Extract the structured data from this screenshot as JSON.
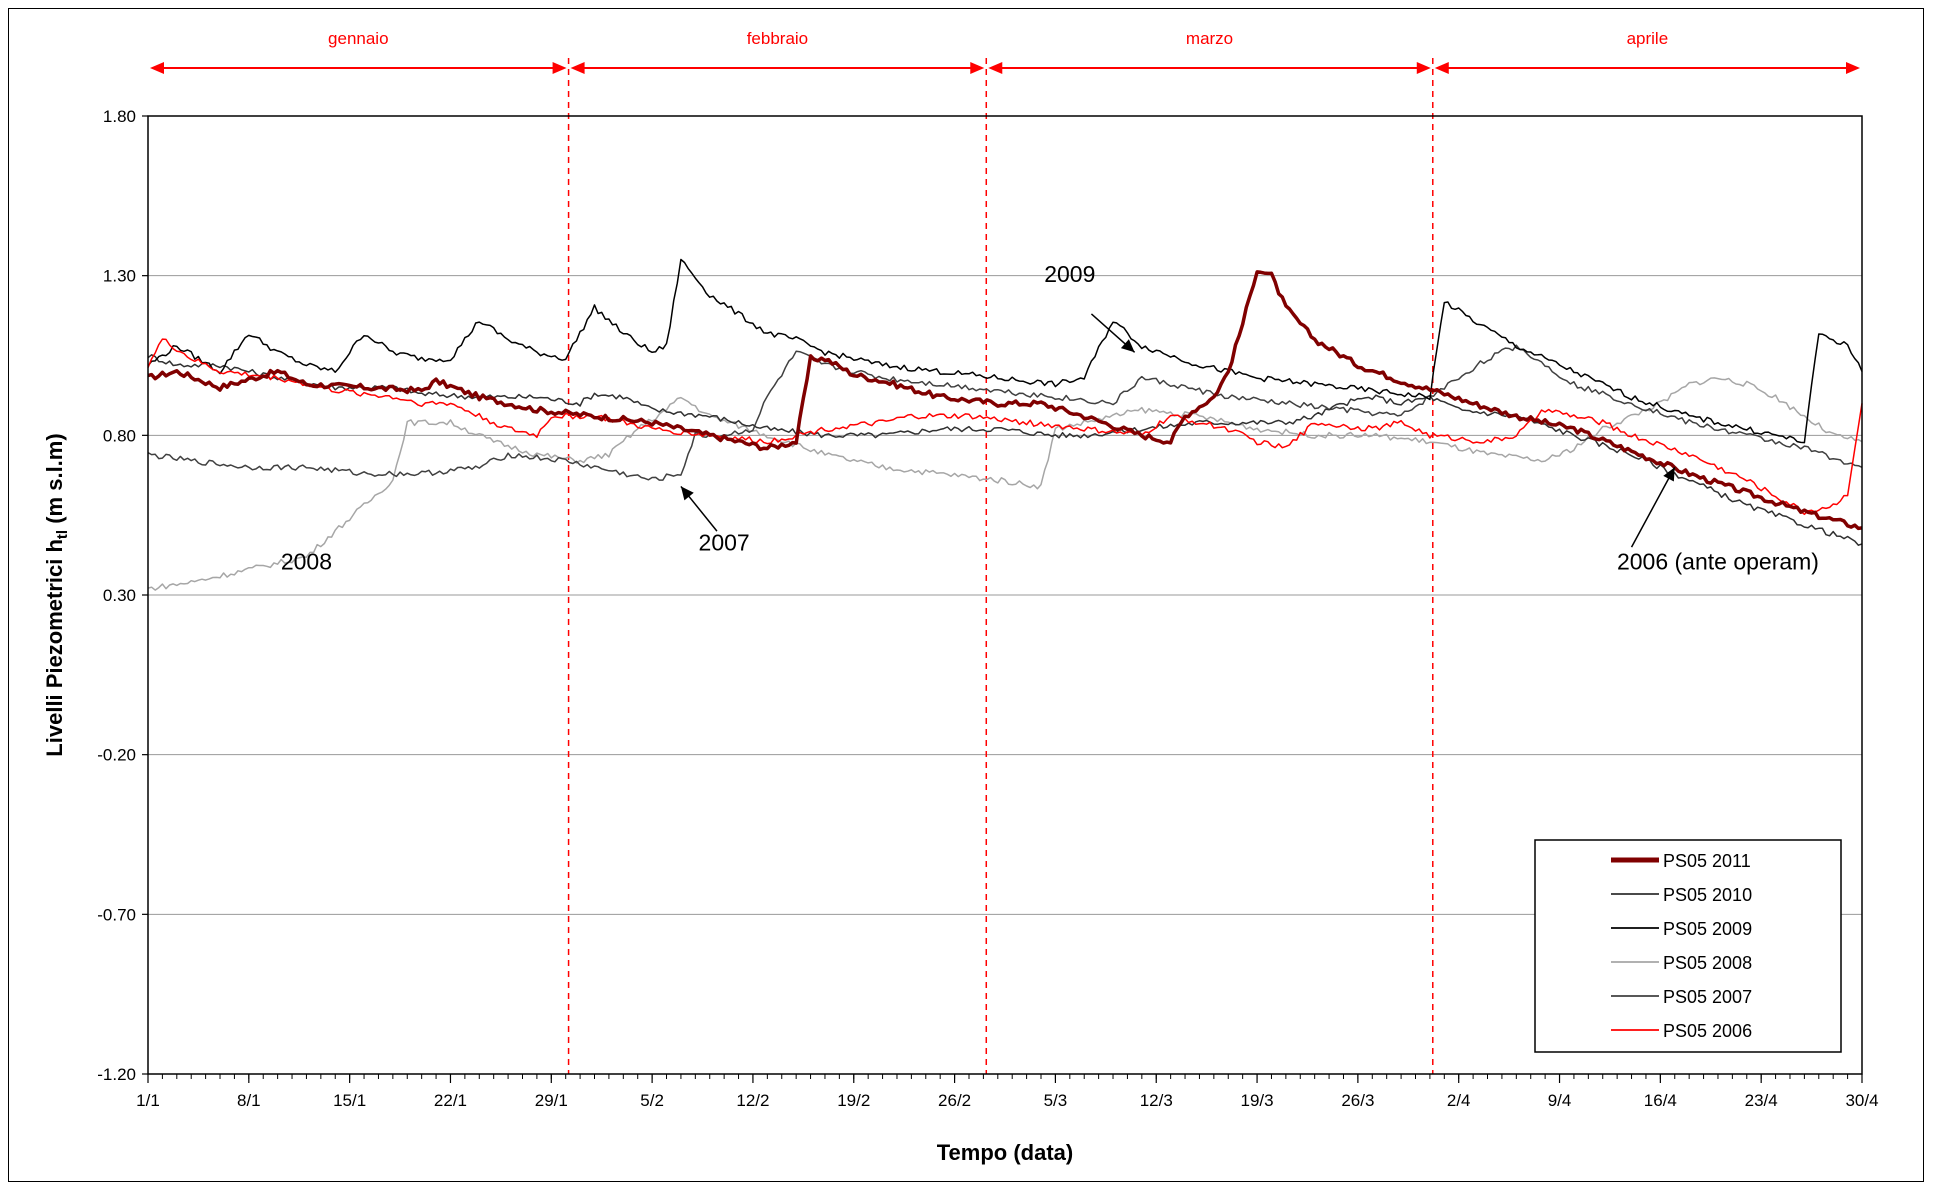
{
  "chart_data": {
    "type": "line",
    "title": "",
    "xlabel": "Tempo (data)",
    "ylabel": "Livelli Piezometrici h",
    "ylabel_sub": "tl",
    "ylabel_unit": " (m s.l.m)",
    "ylim": [
      -1.2,
      1.8
    ],
    "yticks": [
      1.8,
      1.3,
      0.8,
      0.3,
      -0.2,
      -0.7,
      -1.2
    ],
    "ytick_labels": [
      "1.80",
      "1.30",
      "0.80",
      "0.30",
      "-0.20",
      "-0.70",
      "-1.20"
    ],
    "xlim": [
      1,
      120
    ],
    "xticks": [
      {
        "day": 1,
        "label": "1/1"
      },
      {
        "day": 8,
        "label": "8/1"
      },
      {
        "day": 15,
        "label": "15/1"
      },
      {
        "day": 22,
        "label": "22/1"
      },
      {
        "day": 29,
        "label": "29/1"
      },
      {
        "day": 36,
        "label": "5/2"
      },
      {
        "day": 43,
        "label": "12/2"
      },
      {
        "day": 50,
        "label": "19/2"
      },
      {
        "day": 57,
        "label": "26/2"
      },
      {
        "day": 64,
        "label": "5/3"
      },
      {
        "day": 71,
        "label": "12/3"
      },
      {
        "day": 78,
        "label": "19/3"
      },
      {
        "day": 85,
        "label": "26/3"
      },
      {
        "day": 92,
        "label": "2/4"
      },
      {
        "day": 99,
        "label": "9/4"
      },
      {
        "day": 106,
        "label": "16/4"
      },
      {
        "day": 113,
        "label": "23/4"
      },
      {
        "day": 120,
        "label": "30/4"
      }
    ],
    "months": [
      {
        "name": "gennaio",
        "start": 1,
        "end": 30.2
      },
      {
        "name": "febbraio",
        "start": 30.2,
        "end": 59.2
      },
      {
        "name": "marzo",
        "start": 59.2,
        "end": 90.2
      },
      {
        "name": "aprile",
        "start": 90.2,
        "end": 120
      }
    ],
    "month_boundaries": [
      30.2,
      59.2,
      90.2
    ],
    "grid": true,
    "legend_position": "bottom-right",
    "series": [
      {
        "name": "PS05 2011",
        "color": "#800000",
        "width": 3.5,
        "points": [
          [
            1,
            0.98
          ],
          [
            3,
            1.0
          ],
          [
            6,
            0.95
          ],
          [
            10,
            1.0
          ],
          [
            12,
            0.96
          ],
          [
            16,
            0.95
          ],
          [
            20,
            0.94
          ],
          [
            21,
            0.97
          ],
          [
            24,
            0.92
          ],
          [
            28,
            0.88
          ],
          [
            32,
            0.86
          ],
          [
            36,
            0.84
          ],
          [
            40,
            0.8
          ],
          [
            44,
            0.76
          ],
          [
            46,
            0.78
          ],
          [
            47,
            1.04
          ],
          [
            48,
            1.04
          ],
          [
            50,
            0.99
          ],
          [
            52,
            0.97
          ],
          [
            56,
            0.92
          ],
          [
            60,
            0.9
          ],
          [
            63,
            0.9
          ],
          [
            66,
            0.86
          ],
          [
            70,
            0.8
          ],
          [
            72,
            0.78
          ],
          [
            73,
            0.86
          ],
          [
            75,
            0.92
          ],
          [
            76,
            1.0
          ],
          [
            77,
            1.15
          ],
          [
            78,
            1.32
          ],
          [
            79,
            1.3
          ],
          [
            80,
            1.2
          ],
          [
            82,
            1.1
          ],
          [
            85,
            1.02
          ],
          [
            88,
            0.97
          ],
          [
            91,
            0.93
          ],
          [
            93,
            0.9
          ],
          [
            96,
            0.86
          ],
          [
            100,
            0.82
          ],
          [
            104,
            0.75
          ],
          [
            108,
            0.68
          ],
          [
            112,
            0.62
          ],
          [
            116,
            0.56
          ],
          [
            120,
            0.51
          ]
        ]
      },
      {
        "name": "PS05 2010",
        "color": "#303030",
        "width": 1.5,
        "points": [
          [
            1,
            1.05
          ],
          [
            3,
            1.02
          ],
          [
            6,
            1.02
          ],
          [
            10,
            0.98
          ],
          [
            14,
            0.95
          ],
          [
            18,
            0.95
          ],
          [
            20,
            0.93
          ],
          [
            24,
            0.92
          ],
          [
            28,
            0.92
          ],
          [
            31,
            0.9
          ],
          [
            32,
            0.93
          ],
          [
            34,
            0.92
          ],
          [
            36,
            0.88
          ],
          [
            40,
            0.86
          ],
          [
            44,
            0.82
          ],
          [
            48,
            0.8
          ],
          [
            52,
            0.8
          ],
          [
            56,
            0.82
          ],
          [
            60,
            0.82
          ],
          [
            64,
            0.8
          ],
          [
            66,
            0.8
          ],
          [
            70,
            0.82
          ],
          [
            74,
            0.84
          ],
          [
            78,
            0.84
          ],
          [
            80,
            0.84
          ],
          [
            82,
            0.86
          ],
          [
            84,
            0.9
          ],
          [
            86,
            0.92
          ],
          [
            88,
            0.9
          ],
          [
            90,
            0.92
          ],
          [
            92,
            0.88
          ],
          [
            96,
            0.86
          ],
          [
            100,
            0.8
          ],
          [
            104,
            0.74
          ],
          [
            108,
            0.66
          ],
          [
            112,
            0.58
          ],
          [
            116,
            0.52
          ],
          [
            120,
            0.46
          ]
        ]
      },
      {
        "name": "PS05 2009",
        "color": "#000000",
        "width": 1.5,
        "points": [
          [
            1,
            1.02
          ],
          [
            3,
            1.08
          ],
          [
            6,
            1.0
          ],
          [
            8,
            1.12
          ],
          [
            10,
            1.06
          ],
          [
            12,
            1.02
          ],
          [
            14,
            1.0
          ],
          [
            16,
            1.12
          ],
          [
            18,
            1.06
          ],
          [
            20,
            1.04
          ],
          [
            22,
            1.04
          ],
          [
            24,
            1.16
          ],
          [
            26,
            1.1
          ],
          [
            28,
            1.06
          ],
          [
            30,
            1.04
          ],
          [
            32,
            1.2
          ],
          [
            34,
            1.12
          ],
          [
            36,
            1.06
          ],
          [
            37,
            1.08
          ],
          [
            38,
            1.35
          ],
          [
            40,
            1.24
          ],
          [
            42,
            1.18
          ],
          [
            44,
            1.12
          ],
          [
            46,
            1.1
          ],
          [
            48,
            1.06
          ],
          [
            52,
            1.02
          ],
          [
            56,
            1.0
          ],
          [
            60,
            0.98
          ],
          [
            64,
            0.96
          ],
          [
            66,
            0.98
          ],
          [
            68,
            1.16
          ],
          [
            70,
            1.08
          ],
          [
            74,
            1.02
          ],
          [
            78,
            0.98
          ],
          [
            82,
            0.96
          ],
          [
            86,
            0.94
          ],
          [
            90,
            0.92
          ],
          [
            91,
            1.22
          ],
          [
            93,
            1.16
          ],
          [
            96,
            1.08
          ],
          [
            100,
            1.0
          ],
          [
            104,
            0.92
          ],
          [
            108,
            0.86
          ],
          [
            112,
            0.82
          ],
          [
            116,
            0.78
          ],
          [
            117,
            1.12
          ],
          [
            119,
            1.08
          ],
          [
            120,
            1.0
          ]
        ]
      },
      {
        "name": "PS05 2008",
        "color": "#a6a6a6",
        "width": 1.5,
        "points": [
          [
            1,
            0.32
          ],
          [
            4,
            0.34
          ],
          [
            8,
            0.38
          ],
          [
            12,
            0.42
          ],
          [
            15,
            0.54
          ],
          [
            18,
            0.66
          ],
          [
            19,
            0.84
          ],
          [
            22,
            0.84
          ],
          [
            25,
            0.78
          ],
          [
            28,
            0.74
          ],
          [
            31,
            0.72
          ],
          [
            33,
            0.74
          ],
          [
            35,
            0.82
          ],
          [
            37,
            0.88
          ],
          [
            38,
            0.92
          ],
          [
            40,
            0.86
          ],
          [
            44,
            0.8
          ],
          [
            48,
            0.74
          ],
          [
            52,
            0.7
          ],
          [
            56,
            0.68
          ],
          [
            60,
            0.66
          ],
          [
            63,
            0.64
          ],
          [
            64,
            0.82
          ],
          [
            66,
            0.84
          ],
          [
            70,
            0.88
          ],
          [
            74,
            0.86
          ],
          [
            78,
            0.82
          ],
          [
            82,
            0.8
          ],
          [
            86,
            0.8
          ],
          [
            90,
            0.78
          ],
          [
            94,
            0.74
          ],
          [
            98,
            0.72
          ],
          [
            100,
            0.76
          ],
          [
            102,
            0.82
          ],
          [
            104,
            0.86
          ],
          [
            106,
            0.9
          ],
          [
            108,
            0.96
          ],
          [
            110,
            0.98
          ],
          [
            112,
            0.96
          ],
          [
            114,
            0.92
          ],
          [
            116,
            0.86
          ],
          [
            118,
            0.8
          ],
          [
            120,
            0.78
          ]
        ]
      },
      {
        "name": "PS05 2007",
        "color": "#404040",
        "width": 1.5,
        "points": [
          [
            1,
            0.74
          ],
          [
            4,
            0.72
          ],
          [
            8,
            0.7
          ],
          [
            12,
            0.7
          ],
          [
            16,
            0.68
          ],
          [
            20,
            0.68
          ],
          [
            24,
            0.7
          ],
          [
            26,
            0.74
          ],
          [
            30,
            0.72
          ],
          [
            34,
            0.68
          ],
          [
            36,
            0.66
          ],
          [
            38,
            0.68
          ],
          [
            39,
            0.8
          ],
          [
            41,
            0.8
          ],
          [
            43,
            0.82
          ],
          [
            44,
            0.92
          ],
          [
            46,
            1.06
          ],
          [
            48,
            1.02
          ],
          [
            50,
            1.0
          ],
          [
            52,
            0.98
          ],
          [
            56,
            0.96
          ],
          [
            60,
            0.94
          ],
          [
            64,
            0.92
          ],
          [
            68,
            0.9
          ],
          [
            70,
            0.98
          ],
          [
            72,
            0.96
          ],
          [
            76,
            0.92
          ],
          [
            80,
            0.9
          ],
          [
            84,
            0.88
          ],
          [
            88,
            0.86
          ],
          [
            92,
            0.98
          ],
          [
            94,
            1.04
          ],
          [
            96,
            1.08
          ],
          [
            98,
            1.02
          ],
          [
            100,
            0.96
          ],
          [
            104,
            0.9
          ],
          [
            108,
            0.84
          ],
          [
            112,
            0.8
          ],
          [
            116,
            0.76
          ],
          [
            120,
            0.7
          ]
        ]
      },
      {
        "name": "PS05 2006",
        "color": "#ff0000",
        "width": 1.5,
        "points": [
          [
            1,
            1.02
          ],
          [
            2,
            1.1
          ],
          [
            4,
            1.04
          ],
          [
            6,
            1.0
          ],
          [
            10,
            0.98
          ],
          [
            14,
            0.94
          ],
          [
            18,
            0.92
          ],
          [
            20,
            0.9
          ],
          [
            22,
            0.9
          ],
          [
            26,
            0.82
          ],
          [
            28,
            0.8
          ],
          [
            29,
            0.86
          ],
          [
            32,
            0.86
          ],
          [
            36,
            0.82
          ],
          [
            40,
            0.8
          ],
          [
            44,
            0.78
          ],
          [
            46,
            0.8
          ],
          [
            48,
            0.82
          ],
          [
            52,
            0.84
          ],
          [
            54,
            0.86
          ],
          [
            58,
            0.86
          ],
          [
            62,
            0.84
          ],
          [
            66,
            0.82
          ],
          [
            70,
            0.8
          ],
          [
            72,
            0.86
          ],
          [
            76,
            0.82
          ],
          [
            78,
            0.78
          ],
          [
            80,
            0.76
          ],
          [
            82,
            0.84
          ],
          [
            86,
            0.82
          ],
          [
            88,
            0.84
          ],
          [
            90,
            0.8
          ],
          [
            94,
            0.78
          ],
          [
            96,
            0.8
          ],
          [
            98,
            0.88
          ],
          [
            100,
            0.86
          ],
          [
            102,
            0.84
          ],
          [
            104,
            0.8
          ],
          [
            108,
            0.74
          ],
          [
            112,
            0.66
          ],
          [
            116,
            0.56
          ],
          [
            118,
            0.58
          ],
          [
            119,
            0.62
          ],
          [
            120,
            0.9
          ]
        ]
      }
    ],
    "annotations": [
      {
        "text": "2009",
        "x": 65,
        "y": 1.28
      },
      {
        "text": "2008",
        "x": 12,
        "y": 0.38
      },
      {
        "text": "2007",
        "x": 41,
        "y": 0.44
      },
      {
        "text": "2006 (ante operam)",
        "x": 110,
        "y": 0.38
      }
    ]
  }
}
